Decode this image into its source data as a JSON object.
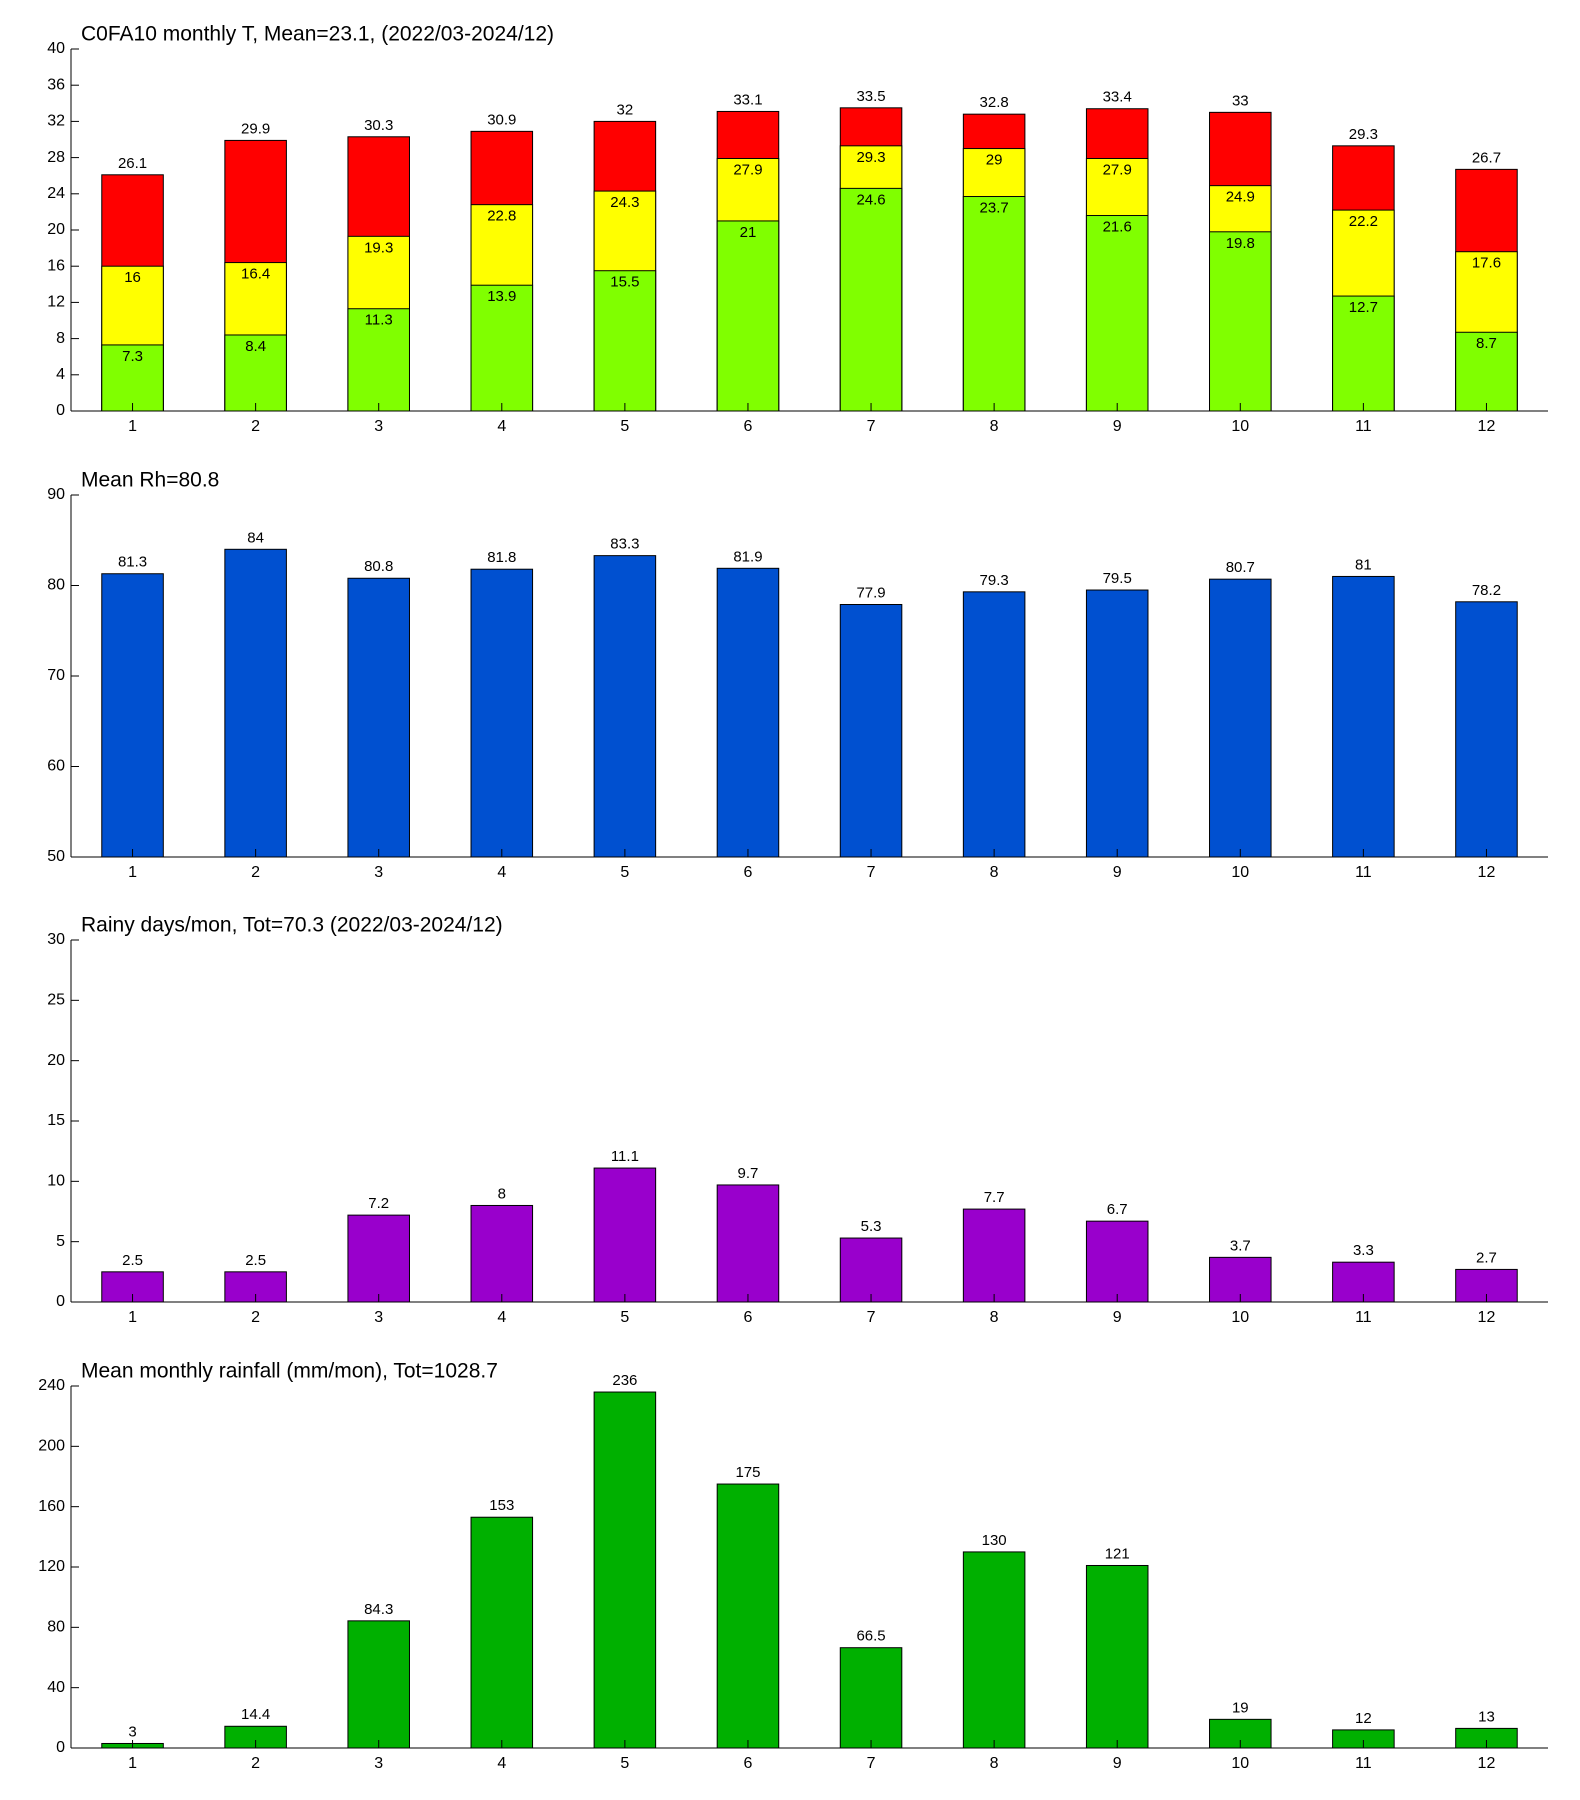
{
  "chart_data": [
    {
      "type": "bar",
      "title": "C0FA10 monthly T, Mean=23.1, (2022/03-2024/12)",
      "categories": [
        1,
        2,
        3,
        4,
        5,
        6,
        7,
        8,
        9,
        10,
        11,
        12
      ],
      "series": [
        {
          "color": "#ff0000",
          "values": [
            26.1,
            29.9,
            30.3,
            30.9,
            32,
            33.1,
            33.5,
            32.8,
            33.4,
            33,
            29.3,
            26.7
          ]
        },
        {
          "color": "#ffff00",
          "values": [
            16,
            16.4,
            19.3,
            22.8,
            24.3,
            27.9,
            29.3,
            29,
            27.9,
            24.9,
            22.2,
            17.6
          ]
        },
        {
          "color": "#80ff00",
          "values": [
            7.3,
            8.4,
            11.3,
            13.9,
            15.5,
            21,
            24.6,
            23.7,
            21.6,
            19.8,
            12.7,
            8.7
          ]
        }
      ],
      "ylim": [
        0,
        40
      ],
      "yticks": [
        0,
        4,
        8,
        12,
        16,
        20,
        24,
        28,
        32,
        36,
        40
      ]
    },
    {
      "type": "bar",
      "title": "Mean Rh=80.8",
      "categories": [
        1,
        2,
        3,
        4,
        5,
        6,
        7,
        8,
        9,
        10,
        11,
        12
      ],
      "series": [
        {
          "color": "#0050d0",
          "values": [
            81.3,
            84,
            80.8,
            81.8,
            83.3,
            81.9,
            77.9,
            79.3,
            79.5,
            80.7,
            81,
            78.2
          ]
        }
      ],
      "ylim": [
        50,
        90
      ],
      "yticks": [
        50,
        60,
        70,
        80,
        90
      ]
    },
    {
      "type": "bar",
      "title": "Rainy days/mon, Tot=70.3 (2022/03-2024/12)",
      "categories": [
        1,
        2,
        3,
        4,
        5,
        6,
        7,
        8,
        9,
        10,
        11,
        12
      ],
      "series": [
        {
          "color": "#9900cc",
          "values": [
            2.5,
            2.5,
            7.2,
            8,
            11.1,
            9.7,
            5.3,
            7.7,
            6.7,
            3.7,
            3.3,
            2.7
          ]
        }
      ],
      "ylim": [
        0,
        30
      ],
      "yticks": [
        0,
        5,
        10,
        15,
        20,
        25,
        30
      ]
    },
    {
      "type": "bar",
      "title": "Mean monthly rainfall (mm/mon), Tot=1028.7",
      "categories": [
        1,
        2,
        3,
        4,
        5,
        6,
        7,
        8,
        9,
        10,
        11,
        12
      ],
      "series": [
        {
          "color": "#00b000",
          "values": [
            3,
            14.4,
            84.3,
            153,
            236,
            175,
            66.5,
            130,
            121,
            19,
            12,
            13
          ]
        }
      ],
      "ylim": [
        0,
        240
      ],
      "yticks": [
        0,
        40,
        80,
        120,
        160,
        200,
        240
      ]
    }
  ]
}
